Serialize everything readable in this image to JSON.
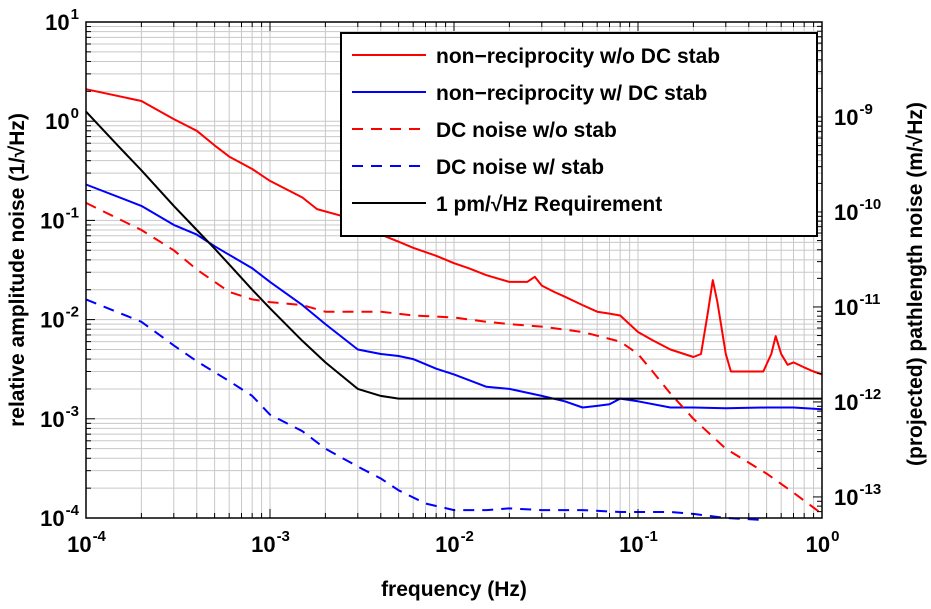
{
  "chart_data": {
    "type": "line",
    "xlabel": "frequency (Hz)",
    "ylabel": "relative amplitude noise (1/√Hz)",
    "y2label": "(projected) pathlength noise (m/√Hz)",
    "x_scale": "log",
    "y_scale": "log",
    "xlim": [
      0.0001,
      1
    ],
    "ylim": [
      0.0001,
      10
    ],
    "y2lim": [
      6e-14,
      1e-08
    ],
    "grid": true,
    "legend_position": "top-right",
    "x_ticks": [
      {
        "base": "10",
        "exp": "-4",
        "value": 0.0001
      },
      {
        "base": "10",
        "exp": "-3",
        "value": 0.001
      },
      {
        "base": "10",
        "exp": "-2",
        "value": 0.01
      },
      {
        "base": "10",
        "exp": "-1",
        "value": 0.1
      },
      {
        "base": "10",
        "exp": "0",
        "value": 1
      }
    ],
    "y_ticks": [
      {
        "base": "10",
        "exp": "-4",
        "value": 0.0001
      },
      {
        "base": "10",
        "exp": "-3",
        "value": 0.001
      },
      {
        "base": "10",
        "exp": "-2",
        "value": 0.01
      },
      {
        "base": "10",
        "exp": "-1",
        "value": 0.1
      },
      {
        "base": "10",
        "exp": "0",
        "value": 1
      },
      {
        "base": "10",
        "exp": "1",
        "value": 10
      }
    ],
    "y2_ticks": [
      {
        "base": "10",
        "exp": "-13",
        "value": 1e-13
      },
      {
        "base": "10",
        "exp": "-12",
        "value": 1e-12
      },
      {
        "base": "10",
        "exp": "-11",
        "value": 1e-11
      },
      {
        "base": "10",
        "exp": "-10",
        "value": 1e-10
      },
      {
        "base": "10",
        "exp": "-9",
        "value": 1e-09
      }
    ],
    "series": [
      {
        "name": "non−reciprocity w/o DC stab",
        "color": "#ff0000",
        "dash": "solid",
        "x": [
          0.0001,
          0.0002,
          0.0003,
          0.0004,
          0.0005,
          0.0006,
          0.0008,
          0.001,
          0.0015,
          0.0018,
          0.0025,
          0.003,
          0.004,
          0.005,
          0.006,
          0.008,
          0.01,
          0.012,
          0.015,
          0.02,
          0.025,
          0.0275,
          0.03,
          0.035,
          0.04,
          0.05,
          0.06,
          0.07,
          0.08,
          0.1,
          0.12,
          0.15,
          0.2,
          0.22,
          0.24,
          0.255,
          0.27,
          0.3,
          0.32,
          0.35,
          0.42,
          0.48,
          0.53,
          0.56,
          0.6,
          0.65,
          0.7,
          0.8,
          0.9,
          1.0
        ],
        "y": [
          2.1,
          1.6,
          1.05,
          0.8,
          0.57,
          0.44,
          0.33,
          0.25,
          0.17,
          0.13,
          0.11,
          0.088,
          0.072,
          0.061,
          0.053,
          0.044,
          0.037,
          0.033,
          0.028,
          0.024,
          0.024,
          0.027,
          0.022,
          0.019,
          0.017,
          0.014,
          0.012,
          0.0115,
          0.011,
          0.0075,
          0.0062,
          0.005,
          0.0042,
          0.0045,
          0.012,
          0.025,
          0.015,
          0.0045,
          0.003,
          0.003,
          0.003,
          0.003,
          0.0045,
          0.0068,
          0.0045,
          0.0035,
          0.0037,
          0.0033,
          0.003,
          0.0028
        ]
      },
      {
        "name": "non−reciprocity w/ DC stab",
        "color": "#0000ff",
        "dash": "solid",
        "x": [
          0.0001,
          0.0002,
          0.0003,
          0.0004,
          0.0005,
          0.0006,
          0.0008,
          0.001,
          0.0015,
          0.002,
          0.003,
          0.004,
          0.005,
          0.006,
          0.008,
          0.01,
          0.015,
          0.02,
          0.03,
          0.04,
          0.05,
          0.06,
          0.07,
          0.08,
          0.1,
          0.15,
          0.2,
          0.3,
          0.5,
          0.7,
          1.0
        ],
        "y": [
          0.23,
          0.14,
          0.09,
          0.072,
          0.055,
          0.045,
          0.033,
          0.024,
          0.014,
          0.009,
          0.005,
          0.0045,
          0.0043,
          0.004,
          0.0032,
          0.0028,
          0.0021,
          0.002,
          0.0017,
          0.0015,
          0.0013,
          0.00135,
          0.0014,
          0.0016,
          0.0015,
          0.0013,
          0.0013,
          0.00128,
          0.0013,
          0.0013,
          0.00125
        ]
      },
      {
        "name": "DC noise w/o stab",
        "color": "#ff0000",
        "dash": "dashed",
        "x": [
          0.0001,
          0.0002,
          0.0003,
          0.0004,
          0.0006,
          0.0008,
          0.001,
          0.0015,
          0.002,
          0.003,
          0.004,
          0.006,
          0.01,
          0.015,
          0.02,
          0.03,
          0.05,
          0.08,
          0.1,
          0.12,
          0.15,
          0.2,
          0.3,
          0.5,
          0.7,
          1.0
        ],
        "y": [
          0.15,
          0.08,
          0.05,
          0.032,
          0.019,
          0.016,
          0.015,
          0.014,
          0.012,
          0.012,
          0.012,
          0.011,
          0.0105,
          0.0095,
          0.009,
          0.0085,
          0.0075,
          0.006,
          0.0045,
          0.003,
          0.0018,
          0.001,
          0.0005,
          0.00028,
          0.00018,
          0.00011
        ]
      },
      {
        "name": "DC noise w/ stab",
        "color": "#0000ff",
        "dash": "dashed",
        "x": [
          0.0001,
          0.0002,
          0.0003,
          0.0004,
          0.0006,
          0.0008,
          0.001,
          0.0015,
          0.002,
          0.003,
          0.004,
          0.005,
          0.007,
          0.01,
          0.015,
          0.02,
          0.03,
          0.05,
          0.08,
          0.1,
          0.15,
          0.2,
          0.3,
          0.5
        ],
        "y": [
          0.016,
          0.0095,
          0.0055,
          0.0038,
          0.0024,
          0.0017,
          0.0011,
          0.00075,
          0.0005,
          0.00033,
          0.00025,
          0.00019,
          0.00014,
          0.00012,
          0.00012,
          0.000125,
          0.00012,
          0.00012,
          0.000115,
          0.000115,
          0.000115,
          0.00011,
          0.0001,
          9.5e-05
        ]
      },
      {
        "name": "1 pm/√Hz Requirement",
        "color": "#000000",
        "dash": "solid",
        "x": [
          0.0001,
          0.00015,
          0.0002,
          0.0003,
          0.0004,
          0.0005,
          0.0006,
          0.0008,
          0.001,
          0.0015,
          0.002,
          0.003,
          0.004,
          0.005,
          0.007,
          0.01,
          0.1,
          1.0
        ],
        "y": [
          1.25,
          0.56,
          0.32,
          0.14,
          0.08,
          0.052,
          0.036,
          0.02,
          0.013,
          0.0061,
          0.0037,
          0.002,
          0.0017,
          0.0016,
          0.0016,
          0.0016,
          0.0016,
          0.0016
        ]
      }
    ]
  }
}
